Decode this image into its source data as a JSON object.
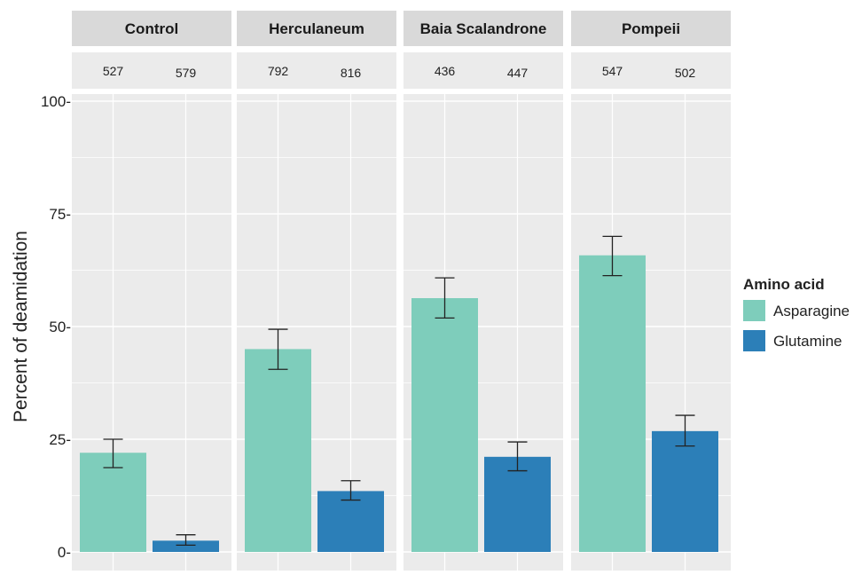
{
  "chart_data": {
    "type": "bar",
    "ylabel": "Percent of deamidation",
    "ylim": [
      0,
      100
    ],
    "yticks": [
      0,
      25,
      50,
      75,
      100
    ],
    "grid": true,
    "legend_position": "right",
    "legend_title": "Amino acid",
    "series": [
      {
        "name": "Asparagine",
        "color": "#7ecdbb"
      },
      {
        "name": "Glutamine",
        "color": "#2c7fb8"
      }
    ],
    "facets": [
      {
        "label": "Control",
        "counts": [
          "527",
          "579"
        ],
        "values": [
          22,
          2.5
        ],
        "err_low": [
          18.7,
          1.5
        ],
        "err_high": [
          25.0,
          3.8
        ]
      },
      {
        "label": "Herculaneum",
        "counts": [
          "792",
          "816"
        ],
        "values": [
          45,
          13.5
        ],
        "err_low": [
          40.5,
          11.5
        ],
        "err_high": [
          49.4,
          15.8
        ]
      },
      {
        "label": "Baia Scalandrone",
        "counts": [
          "436",
          "447"
        ],
        "values": [
          56.3,
          21.1
        ],
        "err_low": [
          51.9,
          18.0
        ],
        "err_high": [
          60.8,
          24.4
        ]
      },
      {
        "label": "Pompeii",
        "counts": [
          "547",
          "502"
        ],
        "values": [
          65.8,
          26.8
        ],
        "err_low": [
          61.3,
          23.5
        ],
        "err_high": [
          70.0,
          30.3
        ]
      }
    ]
  }
}
